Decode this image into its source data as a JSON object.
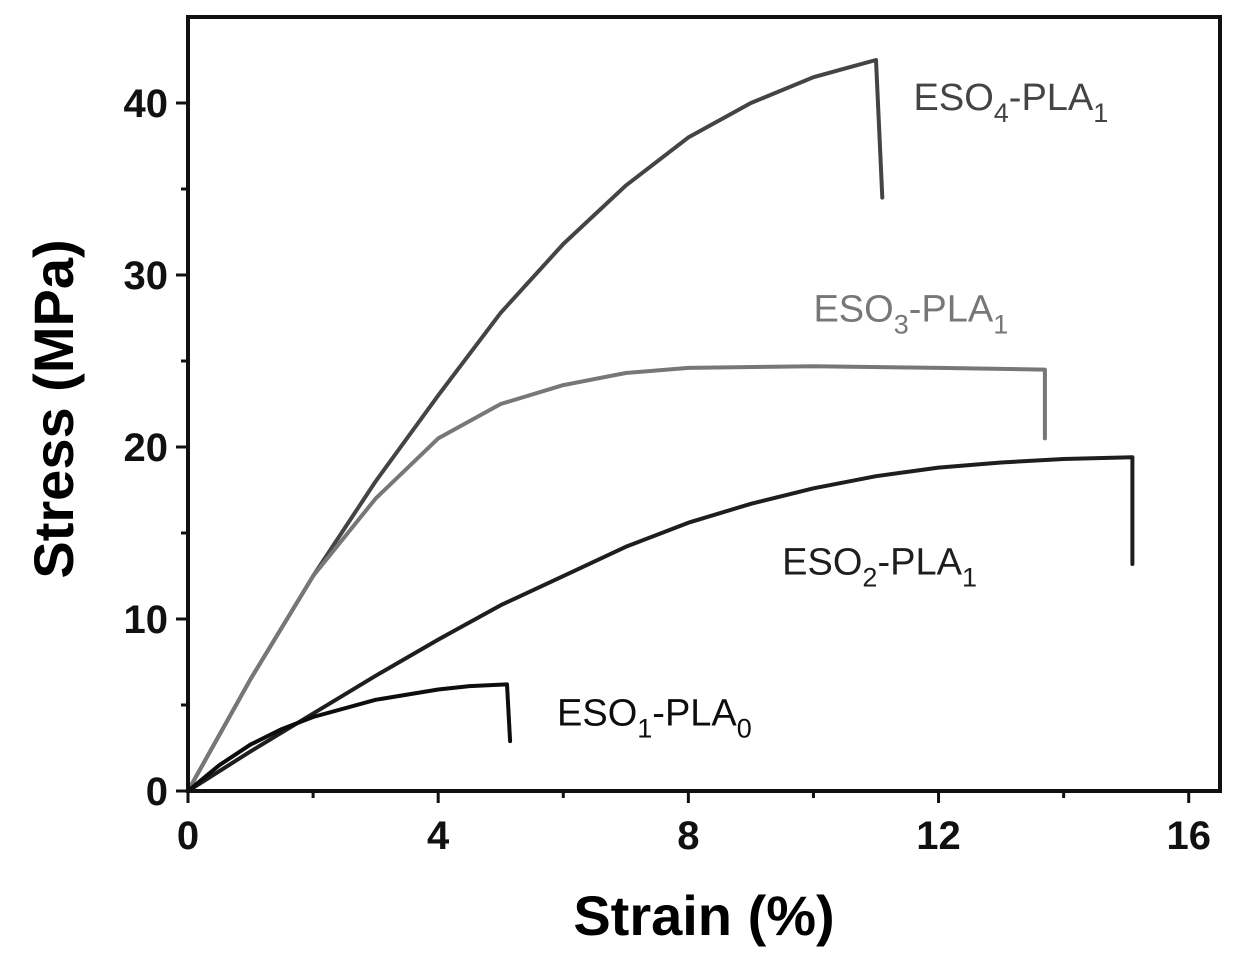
{
  "chart_data": {
    "type": "line",
    "xlabel": "Strain (%)",
    "ylabel": "Stress (MPa)",
    "xlim": [
      0,
      16.5
    ],
    "ylim": [
      0,
      45
    ],
    "x_ticks": [
      0,
      4,
      8,
      12,
      16
    ],
    "y_ticks": [
      0,
      10,
      20,
      30,
      40
    ],
    "x_minor_ticks": [
      2,
      6,
      10,
      14
    ],
    "y_minor_ticks": [
      5,
      15,
      25,
      35
    ],
    "grid": false,
    "series": [
      {
        "label": {
          "base": "ESO",
          "sub1": "4",
          "mid": "-PLA",
          "sub2": "1"
        },
        "color": "#444444",
        "label_at": [
          11.6,
          39.6
        ],
        "x": [
          0,
          1,
          2,
          3,
          4,
          5,
          6,
          7,
          8,
          9,
          10,
          10.5,
          11.0,
          11.1
        ],
        "y": [
          0,
          6.5,
          12.5,
          18.0,
          23.0,
          27.8,
          31.8,
          35.2,
          38.0,
          40.0,
          41.5,
          42.0,
          42.5,
          34.5
        ]
      },
      {
        "label": {
          "base": "ESO",
          "sub1": "3",
          "mid": "-PLA",
          "sub2": "1"
        },
        "color": "#777777",
        "label_at": [
          10.0,
          27.3
        ],
        "x": [
          0,
          1,
          2,
          3,
          4,
          5,
          6,
          7,
          8,
          10,
          12,
          13.7,
          13.7
        ],
        "y": [
          0,
          6.5,
          12.5,
          17.0,
          20.5,
          22.5,
          23.6,
          24.3,
          24.6,
          24.7,
          24.6,
          24.5,
          20.5
        ]
      },
      {
        "label": {
          "base": "ESO",
          "sub1": "2",
          "mid": "-PLA",
          "sub2": "1"
        },
        "color": "#1e1e1e",
        "label_at": [
          9.5,
          12.6
        ],
        "x": [
          0,
          1,
          2,
          3,
          4,
          5,
          6,
          7,
          8,
          9,
          10,
          11,
          12,
          13,
          14,
          15.1,
          15.1
        ],
        "y": [
          0,
          2.3,
          4.5,
          6.7,
          8.8,
          10.8,
          12.5,
          14.2,
          15.6,
          16.7,
          17.6,
          18.3,
          18.8,
          19.1,
          19.3,
          19.4,
          13.2
        ]
      },
      {
        "label": {
          "base": "ESO",
          "sub1": "1",
          "mid": "-PLA",
          "sub2": "0"
        },
        "color": "#0d0d0d",
        "label_at": [
          5.9,
          3.8
        ],
        "x": [
          0,
          0.5,
          1,
          1.5,
          2,
          3,
          4,
          4.5,
          5.1,
          5.15
        ],
        "y": [
          0,
          1.5,
          2.7,
          3.6,
          4.3,
          5.3,
          5.9,
          6.1,
          6.2,
          2.9
        ]
      }
    ]
  }
}
